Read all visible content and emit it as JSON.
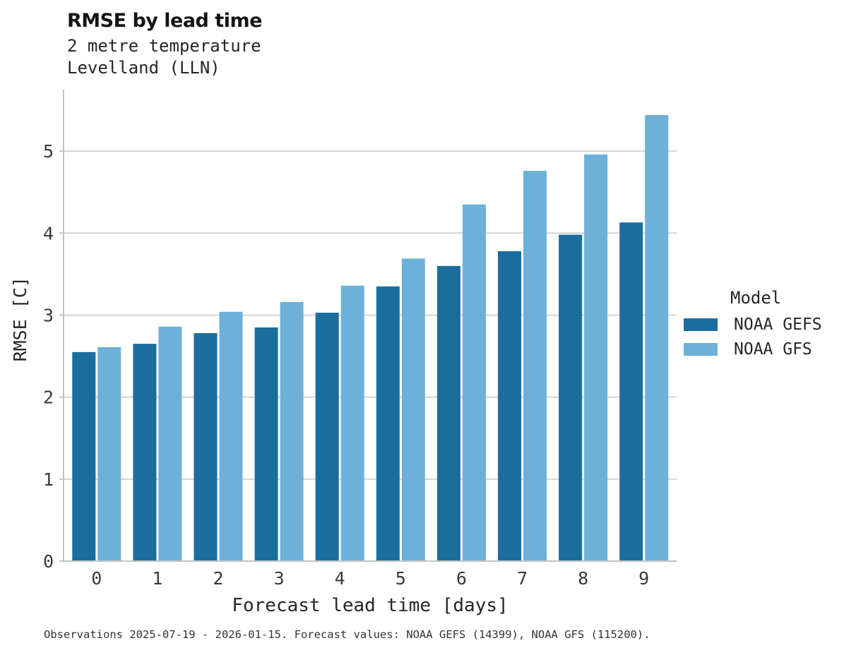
{
  "header": {
    "title": "RMSE by lead time",
    "subtitle_line1": "2 metre temperature",
    "subtitle_line2": "Levelland (LLN)"
  },
  "chart_data": {
    "type": "bar",
    "title": "RMSE by lead time",
    "subtitle_lines": [
      "2 metre temperature",
      "Levelland (LLN)"
    ],
    "categories": [
      "0",
      "1",
      "2",
      "3",
      "4",
      "5",
      "6",
      "7",
      "8",
      "9"
    ],
    "series": [
      {
        "name": "NOAA GEFS",
        "color": "#1b6d9e",
        "values": [
          2.55,
          2.65,
          2.78,
          2.85,
          3.03,
          3.35,
          3.6,
          3.78,
          3.98,
          4.13
        ]
      },
      {
        "name": "NOAA GFS",
        "color": "#6db1d9",
        "values": [
          2.61,
          2.86,
          3.04,
          3.16,
          3.36,
          3.69,
          4.35,
          4.76,
          4.96,
          5.44
        ]
      }
    ],
    "xlabel": "Forecast lead time [days]",
    "ylabel": "RMSE [C]",
    "ylim": [
      0,
      5.75
    ],
    "yticks": [
      0,
      1,
      2,
      3,
      4,
      5
    ],
    "grid": "horizontal",
    "legend_position": "right-center"
  },
  "legend": {
    "title": "Model",
    "entries": [
      {
        "label": "NOAA GEFS",
        "color": "#1b6d9e"
      },
      {
        "label": "NOAA GFS",
        "color": "#6db1d9"
      }
    ]
  },
  "footer": {
    "text": "Observations 2025-07-19 - 2026-01-15. Forecast values: NOAA GEFS (14399), NOAA GFS (115200)."
  },
  "colors": {
    "gridline": "#d4d4d4",
    "spine": "#c3c3c3",
    "tick_text": "#3a3a3a"
  }
}
